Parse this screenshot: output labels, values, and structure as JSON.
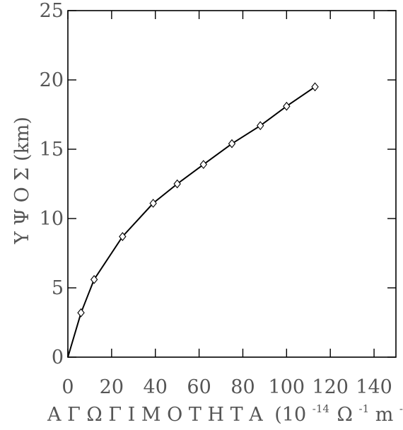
{
  "chart_data": {
    "type": "line",
    "title": "",
    "xlabel": "Α Γ Ω Γ Ι Μ Ο Τ Η Τ Α (10⁻¹⁴ Ω⁻¹ m⁻¹)",
    "xlabel_parts": {
      "word": "Α Γ Ω Γ Ι Μ Ο Τ Η Τ Α",
      "open": "(10",
      "exp1": "-14",
      "omega": "Ω",
      "exp2": "-1",
      "m": " m",
      "exp3": "-1",
      "close": ")"
    },
    "ylabel": "Υ Ψ Ο Σ (km)",
    "xlim": [
      0,
      150
    ],
    "ylim": [
      0,
      25
    ],
    "x_ticks": [
      0,
      20,
      40,
      60,
      80,
      100,
      120,
      140
    ],
    "x_tick_labels": [
      "0",
      "20",
      "40",
      "60",
      "80",
      "100",
      "120",
      "140"
    ],
    "y_ticks": [
      0,
      5,
      10,
      15,
      20,
      25
    ],
    "y_tick_labels": [
      "0",
      "5",
      "10",
      "15",
      "20",
      "25"
    ],
    "grid": false,
    "marker": "diamond",
    "series": [
      {
        "x": [
          0,
          6,
          12,
          25,
          39,
          50,
          62,
          75,
          88,
          100,
          113
        ],
        "y": [
          0,
          3.2,
          5.6,
          8.7,
          11.1,
          12.5,
          13.9,
          15.4,
          16.7,
          18.1,
          19.5
        ]
      }
    ],
    "colors": {
      "line": "#000000",
      "text": "#555555",
      "axis": "#000000"
    }
  }
}
